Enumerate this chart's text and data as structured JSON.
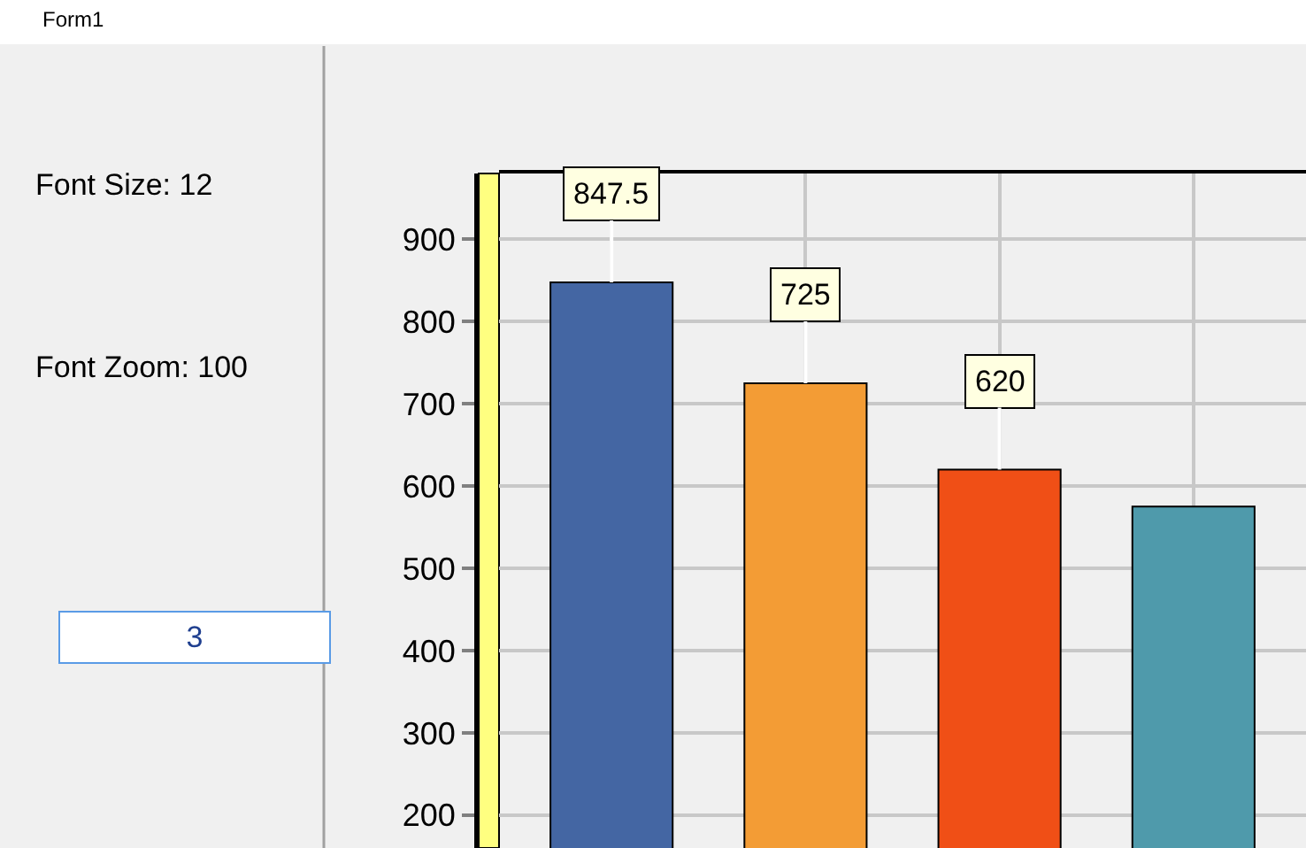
{
  "chart_data": {
    "type": "bar",
    "categories": [
      null,
      null,
      null,
      null
    ],
    "values": [
      847.5,
      725,
      620,
      575
    ],
    "colors": [
      "#4466a3",
      "#f39c35",
      "#f04f16",
      "#4f9aab"
    ],
    "value_labels": [
      "847.5",
      "725",
      "620",
      null
    ],
    "ylim": [
      160,
      980
    ],
    "yticks": [
      200,
      300,
      400,
      500,
      600,
      700,
      800,
      900
    ],
    "grid": true,
    "annotations": [
      "Form1",
      "Font Size: 12",
      "Font Zoom: 100",
      "3"
    ]
  }
}
